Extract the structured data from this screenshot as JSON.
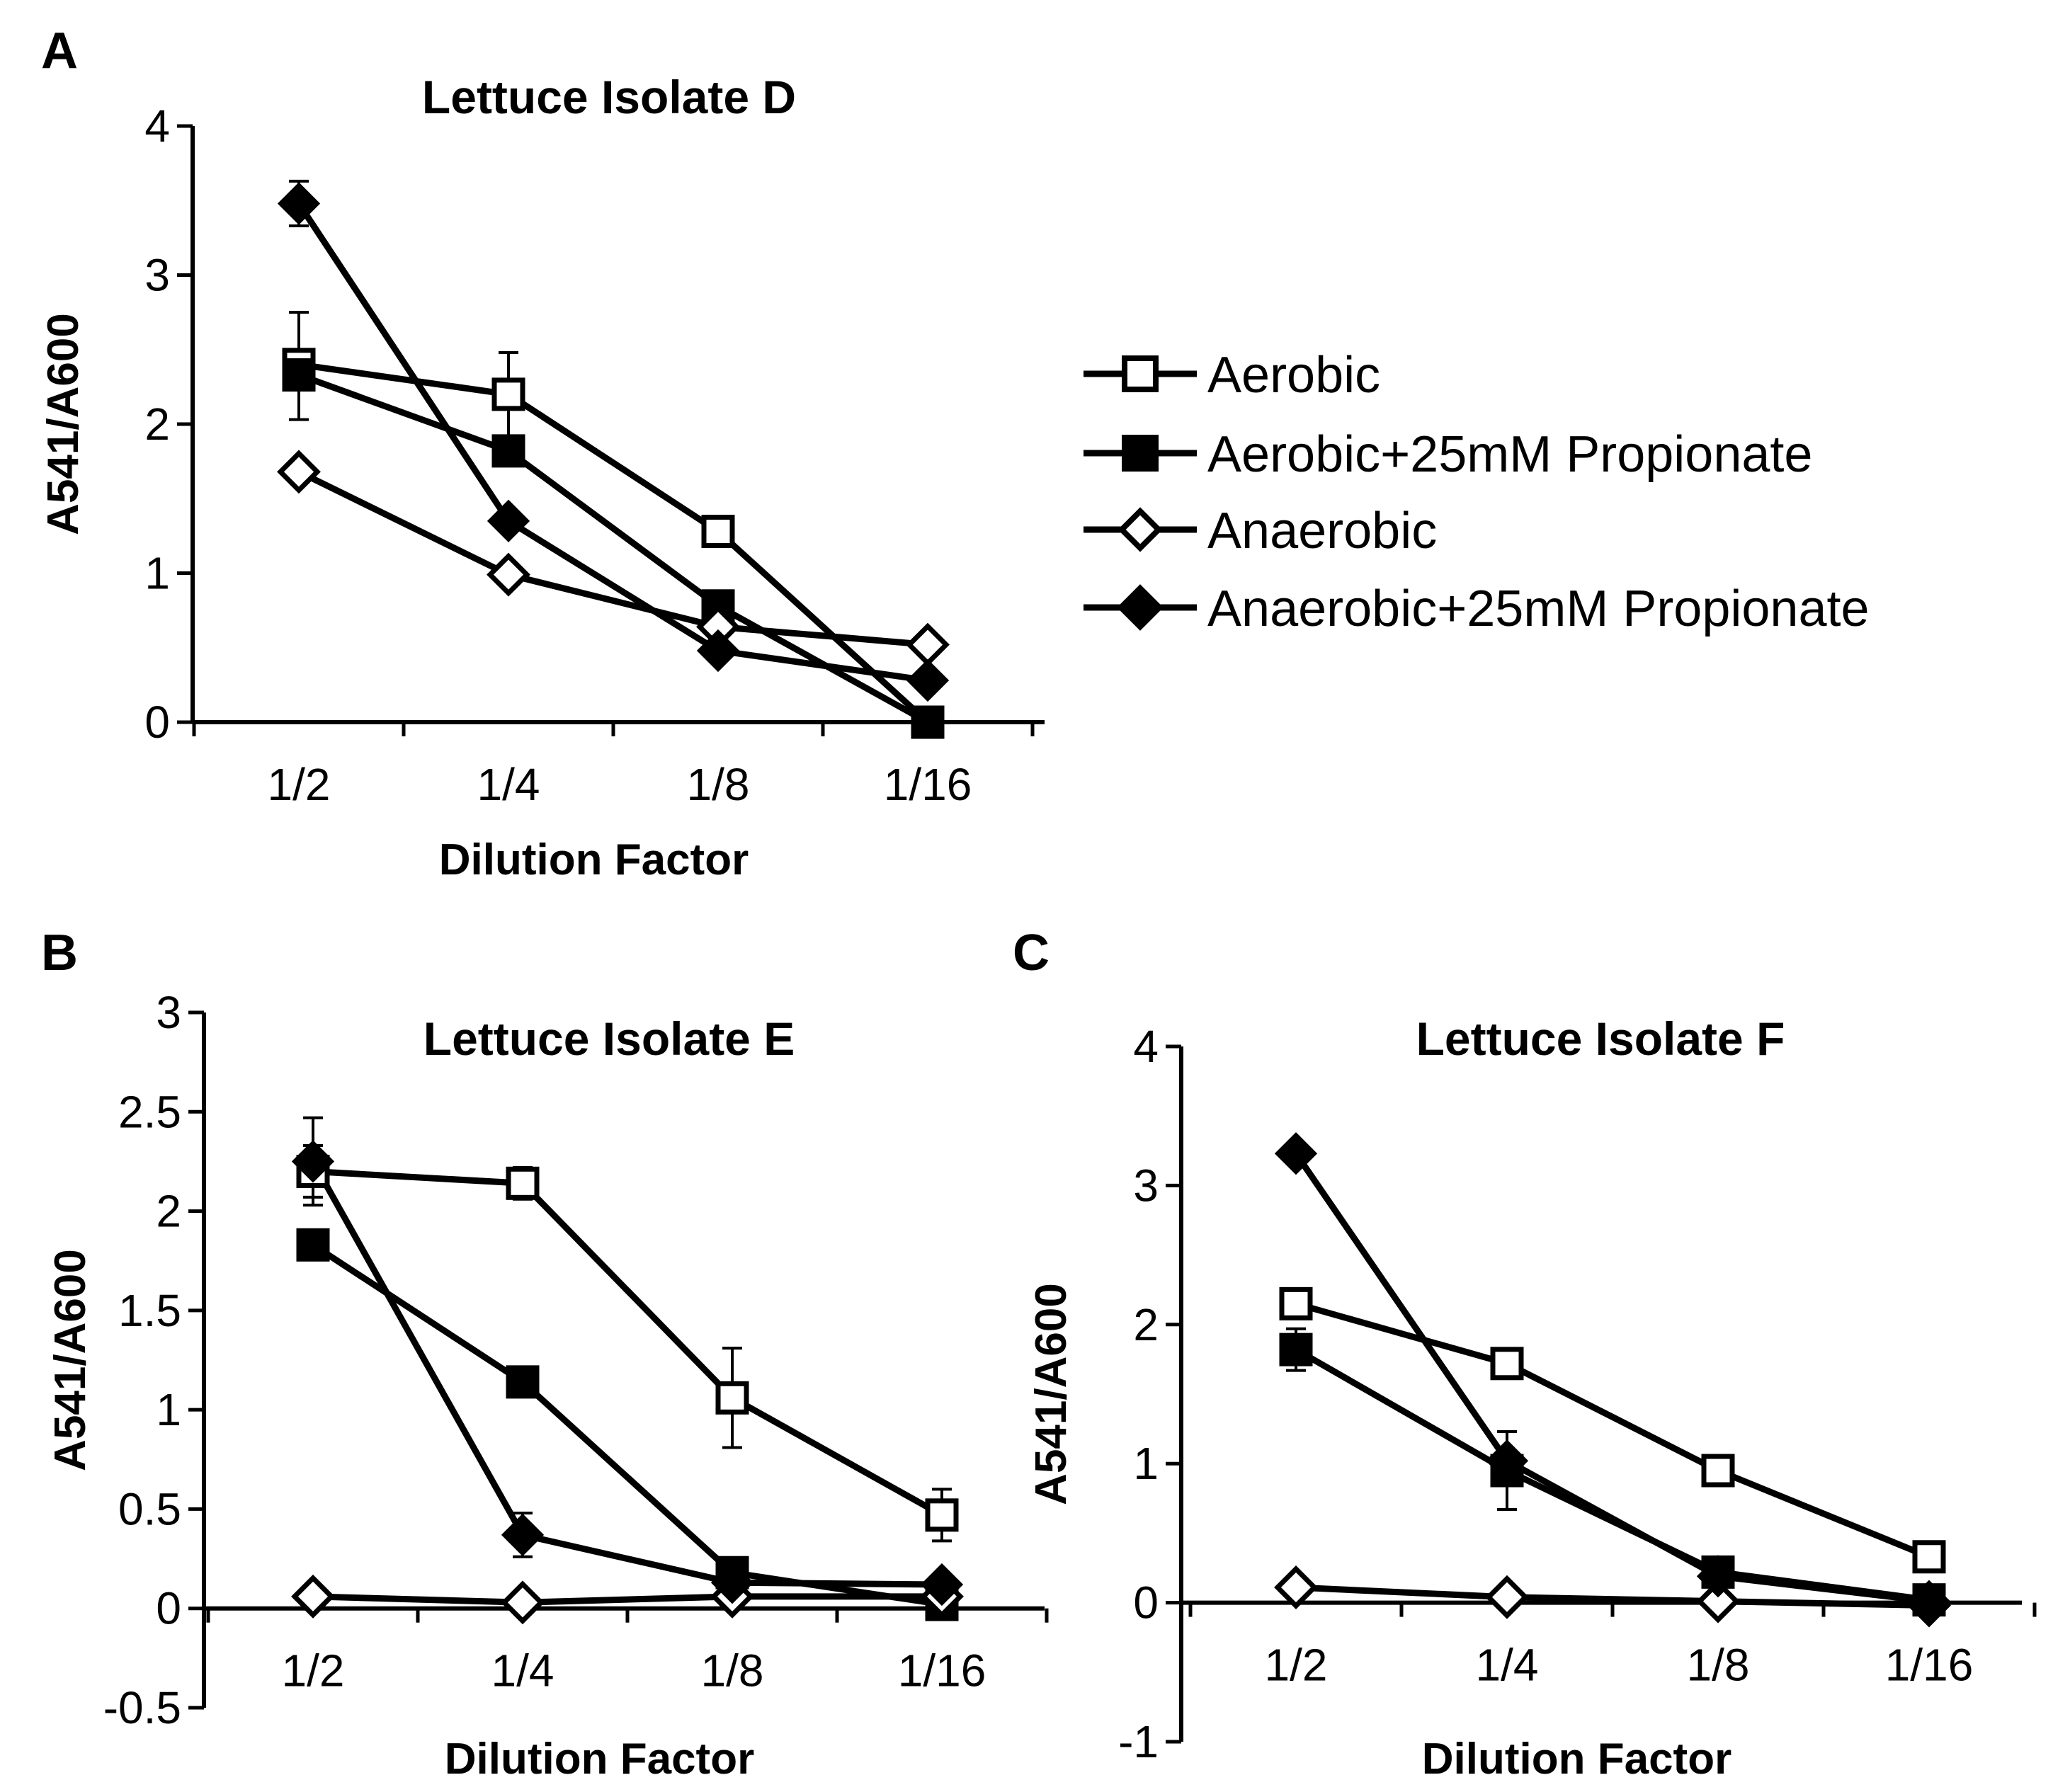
{
  "figure": {
    "panels": [
      "A",
      "B",
      "C"
    ]
  },
  "legend": {
    "items": [
      {
        "label": "Aerobic",
        "marker": "square-open-icon"
      },
      {
        "label": "Aerobic+25mM Propionate",
        "marker": "square-filled-icon"
      },
      {
        "label": "Anaerobic",
        "marker": "diamond-open-icon"
      },
      {
        "label": "Anaerobic+25mM Propionate",
        "marker": "diamond-filled-icon"
      }
    ]
  },
  "colors": {
    "ink": "#000000",
    "background": "#ffffff"
  },
  "chart_data": [
    {
      "panel": "A",
      "type": "line",
      "title": "Lettuce Isolate D",
      "xlabel": "Dilution Factor",
      "ylabel": "A541/A600",
      "categories": [
        "1/2",
        "1/4",
        "1/8",
        "1/16"
      ],
      "ylim": [
        0,
        4
      ],
      "yticks": [
        0,
        1,
        2,
        3,
        4
      ],
      "ytick_labels": [
        "0",
        "1",
        "2",
        "3",
        "4"
      ],
      "series": [
        {
          "name": "Aerobic",
          "marker": "square-open",
          "values": [
            2.4,
            2.2,
            1.28,
            0.0
          ],
          "errors": [
            0.0,
            0.28,
            0.0,
            0.0
          ]
        },
        {
          "name": "Aerobic+25mM Propionate",
          "marker": "square-filled",
          "values": [
            2.33,
            1.82,
            0.78,
            0.0
          ],
          "errors": [
            0.0,
            0.0,
            0.0,
            0.0
          ]
        },
        {
          "name": "Anaerobic",
          "marker": "diamond-open",
          "values": [
            1.68,
            0.99,
            0.64,
            0.52
          ],
          "errors": [
            0.0,
            0.0,
            0.0,
            0.0
          ]
        },
        {
          "name": "Anaerobic+25mM Propionate",
          "marker": "diamond-filled",
          "values": [
            3.48,
            1.35,
            0.48,
            0.28
          ],
          "errors": [
            0.15,
            0.0,
            0.0,
            0.0
          ]
        }
      ],
      "error_bars": [
        {
          "category": "1/2",
          "low": 2.03,
          "high": 2.75
        }
      ]
    },
    {
      "panel": "B",
      "type": "line",
      "title": "Lettuce Isolate E",
      "xlabel": "Dilution Factor",
      "ylabel": "A541/A600",
      "categories": [
        "1/2",
        "1/4",
        "1/8",
        "1/16"
      ],
      "ylim": [
        -0.5,
        3
      ],
      "yticks": [
        -0.5,
        0,
        0.5,
        1,
        1.5,
        2,
        2.5,
        3
      ],
      "ytick_labels": [
        "-0.5",
        "0",
        "0.5",
        "1",
        "1.5",
        "2",
        "2.5",
        "3"
      ],
      "series": [
        {
          "name": "Aerobic",
          "marker": "square-open",
          "values": [
            2.2,
            2.14,
            1.06,
            0.47
          ],
          "errors": [
            0.13,
            0.08,
            0.25,
            0.13
          ]
        },
        {
          "name": "Aerobic+25mM Propionate",
          "marker": "square-filled",
          "values": [
            1.83,
            1.14,
            0.18,
            0.02
          ],
          "errors": [
            0.0,
            0.0,
            0.0,
            0.0
          ]
        },
        {
          "name": "Anaerobic",
          "marker": "diamond-open",
          "values": [
            0.06,
            0.03,
            0.06,
            0.06
          ],
          "errors": [
            0.0,
            0.0,
            0.0,
            0.0
          ]
        },
        {
          "name": "Anaerobic+25mM Propionate",
          "marker": "diamond-filled",
          "values": [
            2.25,
            0.37,
            0.13,
            0.12
          ],
          "errors": [
            0.22,
            0.11,
            0.0,
            0.0
          ]
        }
      ]
    },
    {
      "panel": "C",
      "type": "line",
      "title": "Lettuce Isolate F",
      "xlabel": "Dilution Factor",
      "ylabel": "A541/A600",
      "categories": [
        "1/2",
        "1/4",
        "1/8",
        "1/16"
      ],
      "ylim": [
        -1,
        4
      ],
      "yticks": [
        -1,
        0,
        1,
        2,
        3,
        4
      ],
      "ytick_labels": [
        "-1",
        "0",
        "1",
        "2",
        "3",
        "4"
      ],
      "series": [
        {
          "name": "Aerobic",
          "marker": "square-open",
          "values": [
            2.15,
            1.72,
            0.95,
            0.33
          ],
          "errors": [
            0.0,
            0.0,
            0.0,
            0.0
          ]
        },
        {
          "name": "Aerobic+25mM Propionate",
          "marker": "square-filled",
          "values": [
            1.82,
            0.95,
            0.22,
            0.02
          ],
          "errors": [
            0.15,
            0.28,
            0.0,
            0.0
          ]
        },
        {
          "name": "Anaerobic",
          "marker": "diamond-open",
          "values": [
            0.11,
            0.04,
            0.01,
            -0.02
          ],
          "errors": [
            0.0,
            0.0,
            0.0,
            0.0
          ]
        },
        {
          "name": "Anaerobic+25mM Propionate",
          "marker": "diamond-filled",
          "values": [
            3.23,
            1.02,
            0.19,
            0.01
          ],
          "errors": [
            0.0,
            0.0,
            0.0,
            0.0
          ]
        }
      ]
    }
  ]
}
